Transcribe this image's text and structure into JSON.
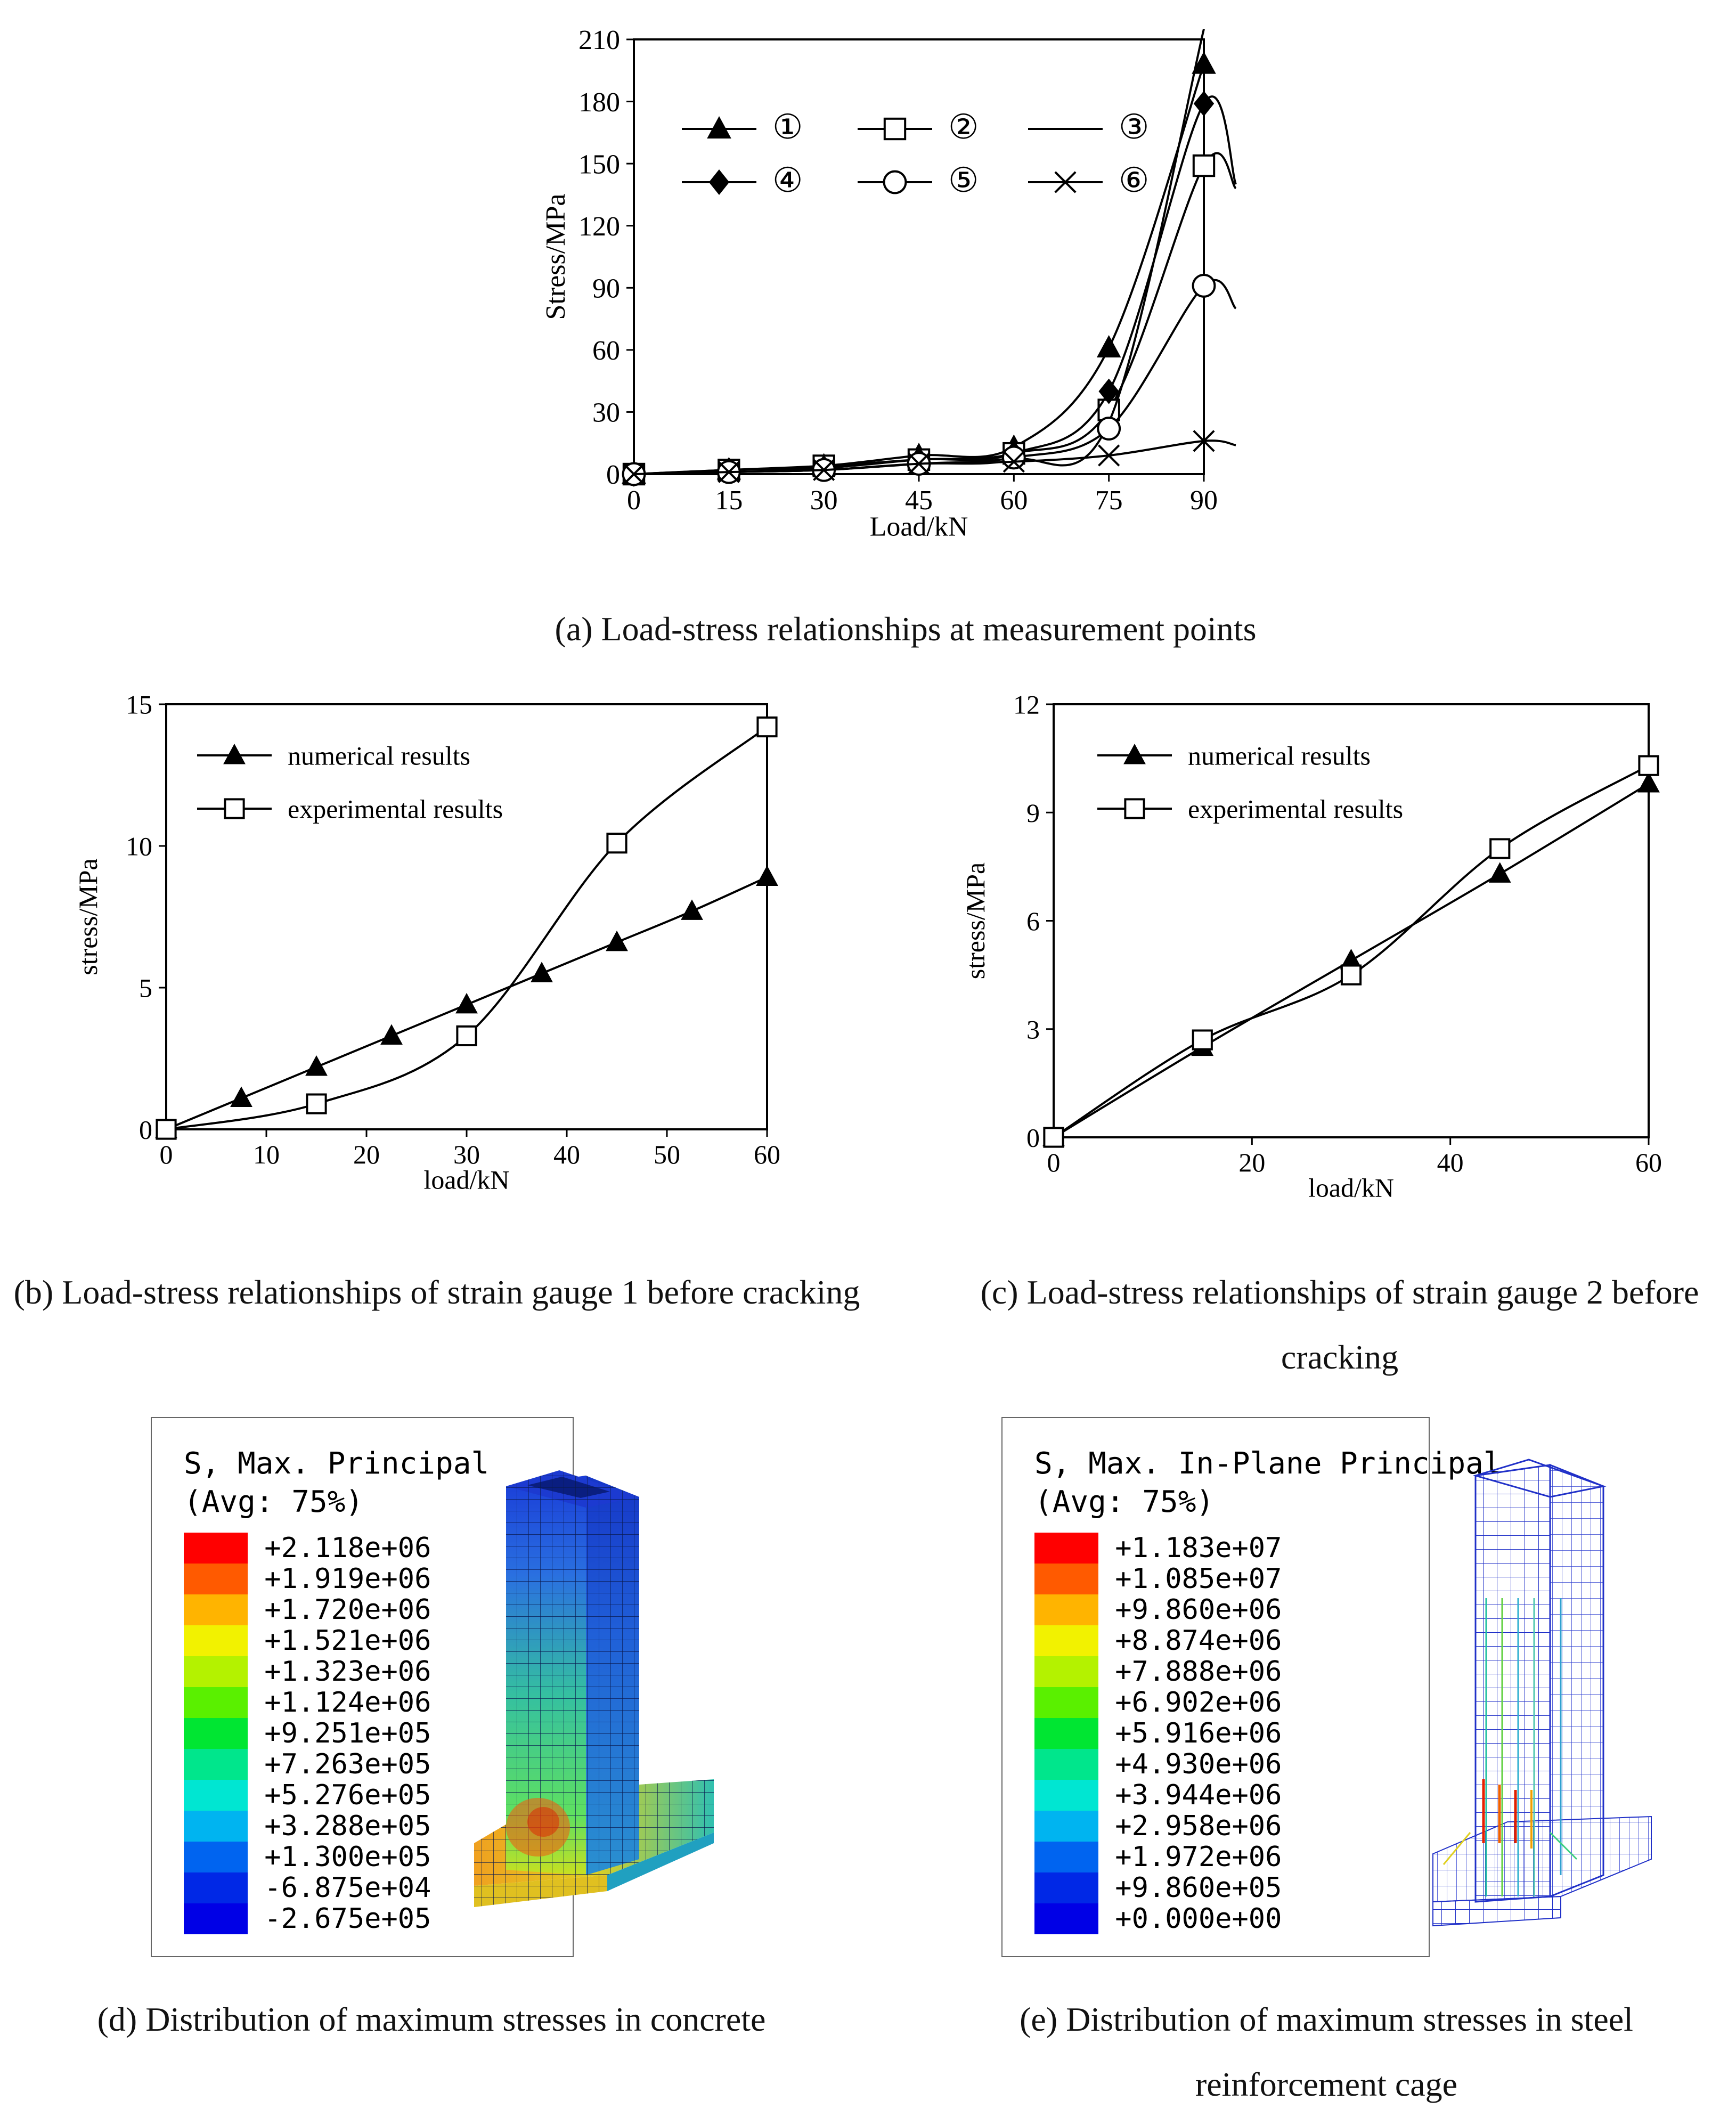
{
  "figure": {
    "panel_a": {
      "caption": "(a) Load-stress relationships at measurement points",
      "chart_data": {
        "type": "line",
        "xlabel": "Load/kN",
        "ylabel": "Stress/MPa",
        "xlim": [
          0,
          90
        ],
        "ylim": [
          0,
          210
        ],
        "xticks": [
          0,
          15,
          30,
          45,
          60,
          75,
          90
        ],
        "yticks": [
          0,
          30,
          60,
          90,
          120,
          150,
          180,
          210
        ],
        "x": [
          0,
          15,
          30,
          45,
          60,
          75,
          90
        ],
        "series": [
          {
            "name": "①",
            "marker": "filled-triangle",
            "values": [
              0,
              2,
              4,
              9,
              13,
              61,
              198
            ]
          },
          {
            "name": "②",
            "marker": "open-square",
            "values": [
              0,
              2,
              4,
              7,
              10,
              31,
              149
            ]
          },
          {
            "name": "③",
            "marker": "none",
            "values": [
              0,
              1,
              2,
              5,
              7,
              25,
              215
            ]
          },
          {
            "name": "④",
            "marker": "filled-diamond",
            "values": [
              0,
              2,
              3,
              7,
              10,
              40,
              179
            ]
          },
          {
            "name": "⑤",
            "marker": "open-circle",
            "values": [
              0,
              1,
              2,
              5,
              8,
              22,
              91
            ]
          },
          {
            "name": "⑥",
            "marker": "cross",
            "values": [
              0,
              1,
              2,
              5,
              6,
              9,
              16
            ]
          }
        ]
      }
    },
    "panel_b": {
      "caption": "(b) Load-stress relationships of strain gauge 1 before cracking",
      "chart_data": {
        "type": "line",
        "xlabel": "load/kN",
        "ylabel": "stress/MPa",
        "xlim": [
          0,
          60
        ],
        "ylim": [
          0,
          15
        ],
        "xticks": [
          0,
          10,
          20,
          30,
          40,
          50,
          60
        ],
        "yticks": [
          0,
          5,
          10,
          15
        ],
        "series": [
          {
            "name": "numerical results",
            "marker": "filled-triangle",
            "x": [
              0,
              7.5,
              15,
              22.5,
              30,
              37.5,
              45,
              52.5,
              60
            ],
            "values": [
              0,
              1.1,
              2.2,
              3.3,
              4.4,
              5.5,
              6.6,
              7.7,
              8.9
            ]
          },
          {
            "name": "experimental results",
            "marker": "open-square",
            "x": [
              0,
              15,
              30,
              45,
              60
            ],
            "values": [
              0,
              0.9,
              3.3,
              10.1,
              14.2
            ]
          }
        ]
      }
    },
    "panel_c": {
      "caption": "(c) Load-stress relationships of strain gauge 2 before cracking",
      "chart_data": {
        "type": "line",
        "xlabel": "load/kN",
        "ylabel": "stress/MPa",
        "xlim": [
          0,
          60
        ],
        "ylim": [
          0,
          12
        ],
        "xticks": [
          0,
          20,
          40,
          60
        ],
        "yticks": [
          0,
          3,
          6,
          9,
          12
        ],
        "series": [
          {
            "name": "numerical results",
            "marker": "filled-triangle",
            "x": [
              0,
              15,
              30,
              45,
              60
            ],
            "values": [
              0,
              2.5,
              4.9,
              7.3,
              9.8
            ]
          },
          {
            "name": "experimental results",
            "marker": "open-square",
            "x": [
              0,
              15,
              30,
              45,
              60
            ],
            "values": [
              0,
              2.7,
              4.5,
              8.0,
              10.3
            ]
          }
        ]
      }
    },
    "panel_d": {
      "caption": "(d) Distribution of maximum stresses in concrete",
      "legend_title_1": "S, Max. Principal",
      "legend_title_2": "(Avg: 75%)",
      "legend_values": [
        "+2.118e+06",
        "+1.919e+06",
        "+1.720e+06",
        "+1.521e+06",
        "+1.323e+06",
        "+1.124e+06",
        "+9.251e+05",
        "+7.263e+05",
        "+5.276e+05",
        "+3.288e+05",
        "+1.300e+05",
        "-6.875e+04",
        "-2.675e+05"
      ],
      "colors": [
        "#ff0000",
        "#ff5a00",
        "#ffb400",
        "#f2f200",
        "#b4f200",
        "#5af000",
        "#00e632",
        "#00e68c",
        "#00e6d2",
        "#00b4f0",
        "#0064f0",
        "#0028e6",
        "#0000e6"
      ]
    },
    "panel_e": {
      "caption": "(e) Distribution of maximum stresses in steel reinforcement cage",
      "legend_title_1": "S, Max. In-Plane Principal",
      "legend_title_2": "(Avg: 75%)",
      "legend_values": [
        "+1.183e+07",
        "+1.085e+07",
        "+9.860e+06",
        "+8.874e+06",
        "+7.888e+06",
        "+6.902e+06",
        "+5.916e+06",
        "+4.930e+06",
        "+3.944e+06",
        "+2.958e+06",
        "+1.972e+06",
        "+9.860e+05",
        "+0.000e+00"
      ],
      "colors": [
        "#ff0000",
        "#ff5a00",
        "#ffb400",
        "#f2f200",
        "#b4f200",
        "#5af000",
        "#00e632",
        "#00e68c",
        "#00e6d2",
        "#00b4f0",
        "#0064f0",
        "#0028e6",
        "#0000e6"
      ]
    }
  }
}
